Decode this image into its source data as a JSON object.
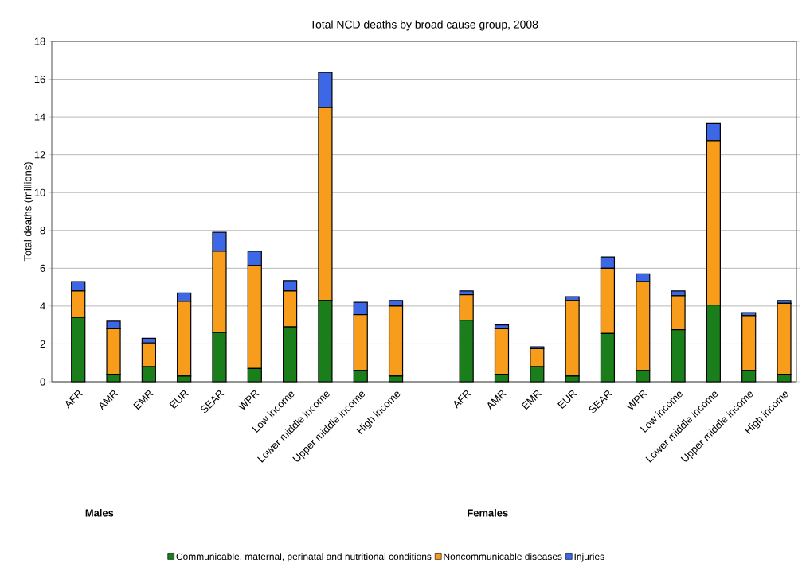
{
  "chart_data": {
    "type": "bar",
    "stacked": true,
    "title": "Total NCD deaths by broad cause group, 2008",
    "ylabel": "Total deaths (millions)",
    "categories": [
      "AFR",
      "AMR",
      "EMR",
      "EUR",
      "SEAR",
      "WPR",
      "Low income",
      "Lower middle income",
      "Upper middle income",
      "High income",
      null,
      "AFR",
      "AMR",
      "EMR",
      "EUR",
      "SEAR",
      "WPR",
      "Low income",
      "Lower middle income",
      "Upper middle income",
      "High income"
    ],
    "series": [
      {
        "name": "Communicable, maternal, perinatal and nutritional conditions",
        "color": "#1a7f1a",
        "values": [
          3.4,
          0.4,
          0.8,
          0.3,
          2.6,
          0.7,
          2.9,
          4.3,
          0.6,
          0.3,
          null,
          3.25,
          0.4,
          0.8,
          0.3,
          2.55,
          0.6,
          2.75,
          4.05,
          0.6,
          0.4
        ]
      },
      {
        "name": "Noncommunicable diseases",
        "color": "#f89c1c",
        "values": [
          1.4,
          2.4,
          1.25,
          3.95,
          4.3,
          5.45,
          1.9,
          10.2,
          2.95,
          3.7,
          null,
          1.35,
          2.4,
          0.95,
          4.0,
          3.45,
          4.7,
          1.8,
          8.7,
          2.9,
          3.75
        ]
      },
      {
        "name": "Injuries",
        "color": "#3c68e8",
        "values": [
          0.5,
          0.4,
          0.25,
          0.45,
          1.0,
          0.75,
          0.55,
          1.85,
          0.65,
          0.3,
          null,
          0.2,
          0.2,
          0.1,
          0.2,
          0.6,
          0.4,
          0.25,
          0.9,
          0.15,
          0.15
        ]
      }
    ],
    "annotations": [
      "Males",
      "Females"
    ],
    "ylim": [
      0,
      18
    ],
    "yticks": [
      0,
      2,
      4,
      6,
      8,
      10,
      12,
      14,
      16,
      18
    ],
    "grid": "y",
    "legend": "bottom"
  }
}
